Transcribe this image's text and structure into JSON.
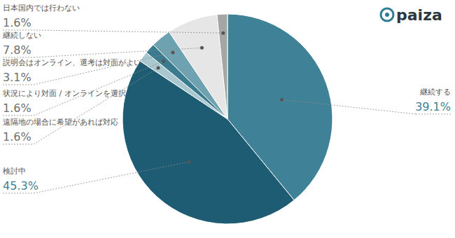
{
  "chart_data": {
    "type": "pie",
    "categories": [
      "継続する",
      "検討中",
      "遠隔地の場合に希望があれば対応",
      "状況により対面 / オンラインを選択",
      "説明会はオンライン、選考は対面がよい",
      "継続しない",
      "日本国内では行わない"
    ],
    "values": [
      39.1,
      45.3,
      1.6,
      1.6,
      3.1,
      7.8,
      1.6
    ],
    "value_labels": [
      "39.1%",
      "45.3%",
      "1.6%",
      "1.6%",
      "3.1%",
      "7.8%",
      "1.6%"
    ],
    "colors": [
      "#3f8197",
      "#1d5c73",
      "#a9c7cf",
      "#3a7b8f",
      "#6fa2b1",
      "#e6e6e6",
      "#a6a6a6"
    ],
    "data_labels": true,
    "annotations": [
      "paiza"
    ]
  }
}
